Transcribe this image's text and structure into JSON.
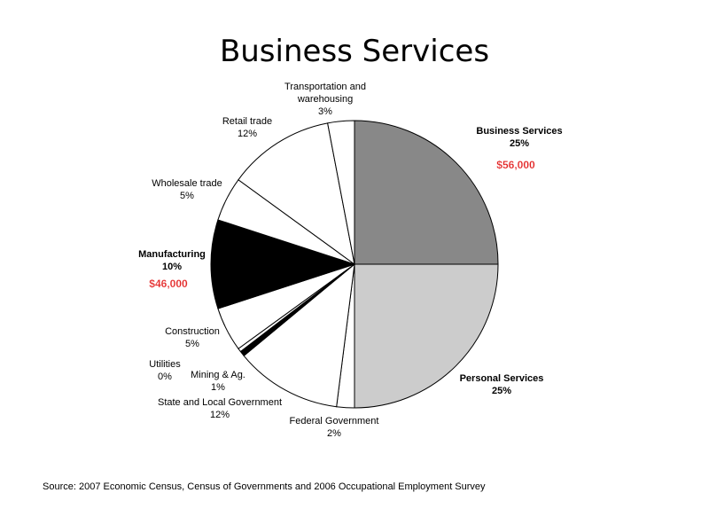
{
  "title": "Business Services",
  "source": "Source: 2007 Economic Census, Census of Governments and 2006 Occupational Employment Survey",
  "chart_data": {
    "type": "pie",
    "title": "Business Services",
    "slices": [
      {
        "key": "business-services",
        "name": "Business Services",
        "pct_label": "25%",
        "value": 25,
        "color": "#888888",
        "bold": true,
        "wage": "$56,000"
      },
      {
        "key": "personal-services",
        "name": "Personal Services",
        "pct_label": "25%",
        "value": 25,
        "color": "#cccccc",
        "bold": true
      },
      {
        "key": "federal-government",
        "name": "Federal Government",
        "pct_label": "2%",
        "value": 2,
        "color": "#ffffff"
      },
      {
        "key": "state-and-local-government",
        "name": "State and Local Government",
        "pct_label": "12%",
        "value": 12,
        "color": "#ffffff"
      },
      {
        "key": "mining-ag",
        "name": "Mining & Ag.",
        "pct_label": "1%",
        "value": 0.6,
        "color": "#000000"
      },
      {
        "key": "utilities",
        "name": "Utilities",
        "pct_label": "0%",
        "value": 0.4,
        "color": "#ffffff"
      },
      {
        "key": "construction",
        "name": "Construction",
        "pct_label": "5%",
        "value": 5,
        "color": "#ffffff"
      },
      {
        "key": "manufacturing",
        "name": "Manufacturing",
        "pct_label": "10%",
        "value": 10,
        "color": "#000000",
        "bold": true,
        "wage": "$46,000"
      },
      {
        "key": "wholesale-trade",
        "name": "Wholesale trade",
        "pct_label": "5%",
        "value": 5,
        "color": "#ffffff"
      },
      {
        "key": "retail-trade",
        "name": "Retail trade",
        "pct_label": "12%",
        "value": 12,
        "color": "#ffffff"
      },
      {
        "key": "transportation-and-warehousing",
        "name": "Transportation and warehousing",
        "pct_label": "3%",
        "value": 3,
        "color": "#ffffff"
      }
    ]
  }
}
